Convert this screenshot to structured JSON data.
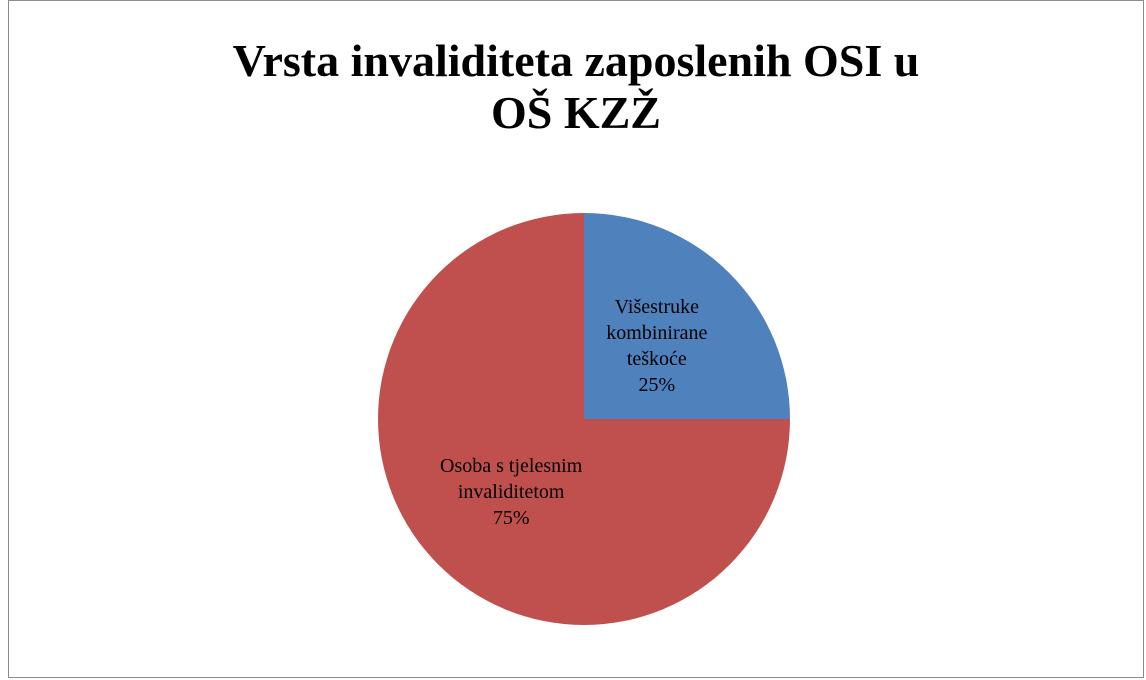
{
  "chart_data": {
    "type": "pie",
    "title": "Vrsta invaliditeta zaposlenih OSI u OŠ KZŽ",
    "categories": [
      "Višestruke kombinirane teškoće",
      "Osoba s tjelesnim invaliditetom"
    ],
    "values": [
      25,
      75
    ],
    "value_labels": [
      "25%",
      "75%"
    ],
    "colors": [
      "#4f81bd",
      "#c0504d"
    ]
  }
}
